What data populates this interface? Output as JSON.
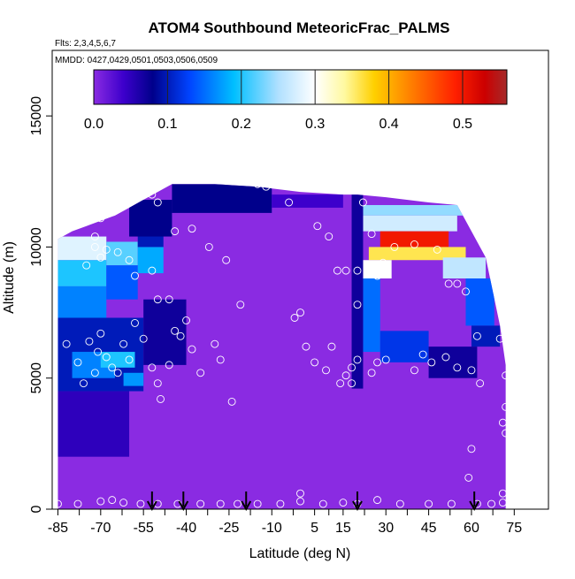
{
  "chart_data": {
    "type": "heatmap",
    "title": "ATOM4 Southbound MeteoricFrac_PALMS",
    "flights_note": "Flts: 2,3,4,5,6,7",
    "dates_note": "MMDD: 0427,0429,0501,0503,0506,0509",
    "xlabel": "Latitude (deg N)",
    "ylabel": "Altitude (m)",
    "xlim": [
      -87,
      87
    ],
    "ylim": [
      0,
      17500
    ],
    "x_ticks": [
      -85,
      -70,
      -55,
      -40,
      -25,
      -10,
      5,
      15,
      30,
      45,
      60,
      75
    ],
    "y_ticks": [
      0,
      5000,
      10000,
      15000
    ],
    "colorbar": {
      "ticks": [
        "0.0",
        "0.1",
        "0.2",
        "0.3",
        "0.4",
        "0.5"
      ],
      "tick_values": [
        0.0,
        0.1,
        0.2,
        0.3,
        0.4,
        0.5
      ],
      "range": [
        0,
        0.56
      ],
      "stops": [
        {
          "v": 0.0,
          "color": "#8a2be2"
        },
        {
          "v": 0.04,
          "color": "#3d00cc"
        },
        {
          "v": 0.08,
          "color": "#00008b"
        },
        {
          "v": 0.13,
          "color": "#0044ff"
        },
        {
          "v": 0.19,
          "color": "#00bfff"
        },
        {
          "v": 0.25,
          "color": "#b0e0ff"
        },
        {
          "v": 0.3,
          "color": "#ffffff"
        },
        {
          "v": 0.34,
          "color": "#fff9a0"
        },
        {
          "v": 0.38,
          "color": "#ffd000"
        },
        {
          "v": 0.43,
          "color": "#ff7f00"
        },
        {
          "v": 0.49,
          "color": "#ff2000"
        },
        {
          "v": 0.53,
          "color": "#cc0000"
        },
        {
          "v": 0.56,
          "color": "#a52a2a"
        }
      ]
    },
    "background_value": 0.0,
    "columns": [
      {
        "lat": -85,
        "top": 10300
      },
      {
        "lat": -80,
        "top": 10600
      },
      {
        "lat": -75,
        "top": 10800
      },
      {
        "lat": -70,
        "top": 11000
      },
      {
        "lat": -65,
        "top": 11200
      },
      {
        "lat": -60,
        "top": 11500
      },
      {
        "lat": -55,
        "top": 11800
      },
      {
        "lat": -50,
        "top": 12100
      },
      {
        "lat": -45,
        "top": 12400
      },
      {
        "lat": -30,
        "top": 12400
      },
      {
        "lat": -15,
        "top": 12300
      },
      {
        "lat": 0,
        "top": 12100
      },
      {
        "lat": 15,
        "top": 12000
      },
      {
        "lat": 20,
        "top": 12000
      },
      {
        "lat": 30,
        "top": 11900
      },
      {
        "lat": 45,
        "top": 11700
      },
      {
        "lat": 55,
        "top": 11600
      },
      {
        "lat": 60,
        "top": 10600
      },
      {
        "lat": 65,
        "top": 9600
      },
      {
        "lat": 70,
        "top": 7000
      },
      {
        "lat": 72,
        "top": 5500
      }
    ],
    "patches": [
      {
        "lat0": -85,
        "lat1": -68,
        "alt0": 9500,
        "alt1": 10400,
        "value": 0.28
      },
      {
        "lat0": -85,
        "lat1": -68,
        "alt0": 8500,
        "alt1": 9500,
        "value": 0.2
      },
      {
        "lat0": -85,
        "lat1": -68,
        "alt0": 7300,
        "alt1": 8500,
        "value": 0.16
      },
      {
        "lat0": -68,
        "lat1": -57,
        "alt0": 9300,
        "alt1": 10200,
        "value": 0.22
      },
      {
        "lat0": -68,
        "lat1": -57,
        "alt0": 8000,
        "alt1": 9300,
        "value": 0.14
      },
      {
        "lat0": -57,
        "lat1": -48,
        "alt0": 9000,
        "alt1": 10000,
        "value": 0.18
      },
      {
        "lat0": -57,
        "lat1": -48,
        "alt0": 10000,
        "alt1": 11000,
        "value": 0.1
      },
      {
        "lat0": -85,
        "lat1": -55,
        "alt0": 4500,
        "alt1": 7300,
        "value": 0.1
      },
      {
        "lat0": -80,
        "lat1": -65,
        "alt0": 5000,
        "alt1": 6000,
        "value": 0.16
      },
      {
        "lat0": -70,
        "lat1": -58,
        "alt0": 5400,
        "alt1": 6000,
        "value": 0.2
      },
      {
        "lat0": -62,
        "lat1": -55,
        "alt0": 4700,
        "alt1": 5200,
        "value": 0.17
      },
      {
        "lat0": -85,
        "lat1": -60,
        "alt0": 2000,
        "alt1": 4500,
        "value": 0.05
      },
      {
        "lat0": -55,
        "lat1": -40,
        "alt0": 5500,
        "alt1": 8000,
        "value": 0.07
      },
      {
        "lat0": -45,
        "lat1": -10,
        "alt0": 11300,
        "alt1": 12400,
        "value": 0.08
      },
      {
        "lat0": -60,
        "lat1": -45,
        "alt0": 10400,
        "alt1": 11800,
        "value": 0.08
      },
      {
        "lat0": -10,
        "lat1": 15,
        "alt0": 11500,
        "alt1": 12000,
        "value": 0.04
      },
      {
        "lat0": 22,
        "lat1": 58,
        "alt0": 11200,
        "alt1": 11600,
        "value": 0.24
      },
      {
        "lat0": 22,
        "lat1": 55,
        "alt0": 10600,
        "alt1": 11200,
        "value": 0.27
      },
      {
        "lat0": 28,
        "lat1": 52,
        "alt0": 10000,
        "alt1": 10600,
        "value": 0.5
      },
      {
        "lat0": 24,
        "lat1": 58,
        "alt0": 9500,
        "alt1": 10000,
        "value": 0.36
      },
      {
        "lat0": 22,
        "lat1": 32,
        "alt0": 8800,
        "alt1": 9500,
        "value": 0.3
      },
      {
        "lat0": 50,
        "lat1": 65,
        "alt0": 8800,
        "alt1": 9600,
        "value": 0.26
      },
      {
        "lat0": 22,
        "lat1": 28,
        "alt0": 6000,
        "alt1": 8800,
        "value": 0.15
      },
      {
        "lat0": 58,
        "lat1": 68,
        "alt0": 7000,
        "alt1": 8800,
        "value": 0.14
      },
      {
        "lat0": 60,
        "lat1": 70,
        "alt0": 6200,
        "alt1": 7000,
        "value": 0.1
      },
      {
        "lat0": 28,
        "lat1": 45,
        "alt0": 5600,
        "alt1": 6800,
        "value": 0.12
      },
      {
        "lat0": 45,
        "lat1": 62,
        "alt0": 5000,
        "alt1": 6200,
        "value": 0.07
      },
      {
        "lat0": 18,
        "lat1": 22,
        "alt0": 4600,
        "alt1": 12000,
        "value": 0.07
      }
    ],
    "points": [
      [
        -82,
        6300
      ],
      [
        -78,
        5600
      ],
      [
        -76,
        4800
      ],
      [
        -74,
        6400
      ],
      [
        -71,
        6000
      ],
      [
        -70,
        6700
      ],
      [
        -68,
        5800
      ],
      [
        -72,
        5200
      ],
      [
        -66,
        5400
      ],
      [
        -64,
        5200
      ],
      [
        -62,
        6300
      ],
      [
        -60,
        5700
      ],
      [
        -58,
        7100
      ],
      [
        -55,
        6500
      ],
      [
        -52,
        5400
      ],
      [
        -50,
        4800
      ],
      [
        -49,
        4200
      ],
      [
        -46,
        5500
      ],
      [
        -44,
        6800
      ],
      [
        -42,
        6600
      ],
      [
        -38,
        6100
      ],
      [
        -35,
        5200
      ],
      [
        -30,
        6300
      ],
      [
        -28,
        5700
      ],
      [
        -24,
        4100
      ],
      [
        -75,
        9300
      ],
      [
        -72,
        10000
      ],
      [
        -70,
        9600
      ],
      [
        -68,
        9900
      ],
      [
        -64,
        9800
      ],
      [
        -60,
        9500
      ],
      [
        -58,
        8900
      ],
      [
        -52,
        9100
      ],
      [
        -50,
        8000
      ],
      [
        -46,
        8000
      ],
      [
        -40,
        7200
      ],
      [
        -44,
        10600
      ],
      [
        -50,
        11700
      ],
      [
        -52,
        12000
      ],
      [
        -62,
        11800
      ],
      [
        -70,
        11100
      ],
      [
        -65,
        11500
      ],
      [
        -72,
        10400
      ],
      [
        -38,
        10700
      ],
      [
        -32,
        10000
      ],
      [
        -26,
        9500
      ],
      [
        -21,
        7800
      ],
      [
        -15,
        12400
      ],
      [
        -12,
        12300
      ],
      [
        -4,
        11700
      ],
      [
        -2,
        7300
      ],
      [
        0,
        7500
      ],
      [
        6,
        10800
      ],
      [
        10,
        10400
      ],
      [
        2,
        6200
      ],
      [
        5,
        5600
      ],
      [
        9,
        5300
      ],
      [
        11,
        6200
      ],
      [
        14,
        4800
      ],
      [
        16,
        5100
      ],
      [
        18,
        5400
      ],
      [
        18,
        4800
      ],
      [
        20,
        7800
      ],
      [
        13,
        9100
      ],
      [
        16,
        9100
      ],
      [
        20,
        9100
      ],
      [
        22,
        11700
      ],
      [
        25,
        10500
      ],
      [
        27,
        8900
      ],
      [
        29,
        9400
      ],
      [
        33,
        10000
      ],
      [
        40,
        10100
      ],
      [
        48,
        9900
      ],
      [
        52,
        8600
      ],
      [
        55,
        8600
      ],
      [
        58,
        8300
      ],
      [
        62,
        6600
      ],
      [
        70,
        6500
      ],
      [
        72,
        5100
      ],
      [
        72,
        3900
      ],
      [
        71,
        3300
      ],
      [
        72,
        2900
      ],
      [
        63,
        4800
      ],
      [
        60,
        5300
      ],
      [
        55,
        5400
      ],
      [
        51,
        5800
      ],
      [
        46,
        5600
      ],
      [
        43,
        5900
      ],
      [
        40,
        5300
      ],
      [
        30,
        5700
      ],
      [
        27,
        5600
      ],
      [
        25,
        5200
      ],
      [
        20,
        5700
      ],
      [
        60,
        2300
      ],
      [
        59,
        1200
      ],
      [
        71,
        600
      ],
      [
        -85,
        200
      ],
      [
        -78,
        200
      ],
      [
        -70,
        300
      ],
      [
        -66,
        350
      ],
      [
        -62,
        250
      ],
      [
        -56,
        200
      ],
      [
        -50,
        200
      ],
      [
        -43,
        200
      ],
      [
        -35,
        200
      ],
      [
        -28,
        200
      ],
      [
        -22,
        200
      ],
      [
        -15,
        200
      ],
      [
        -7,
        200
      ],
      [
        0,
        300
      ],
      [
        0,
        600
      ],
      [
        8,
        200
      ],
      [
        15,
        250
      ],
      [
        20,
        200
      ],
      [
        27,
        350
      ],
      [
        35,
        200
      ],
      [
        45,
        200
      ],
      [
        53,
        200
      ],
      [
        62,
        200
      ],
      [
        67,
        200
      ],
      [
        71,
        250
      ]
    ],
    "arrows_lat": [
      -52,
      -41,
      -19,
      20,
      61
    ]
  }
}
